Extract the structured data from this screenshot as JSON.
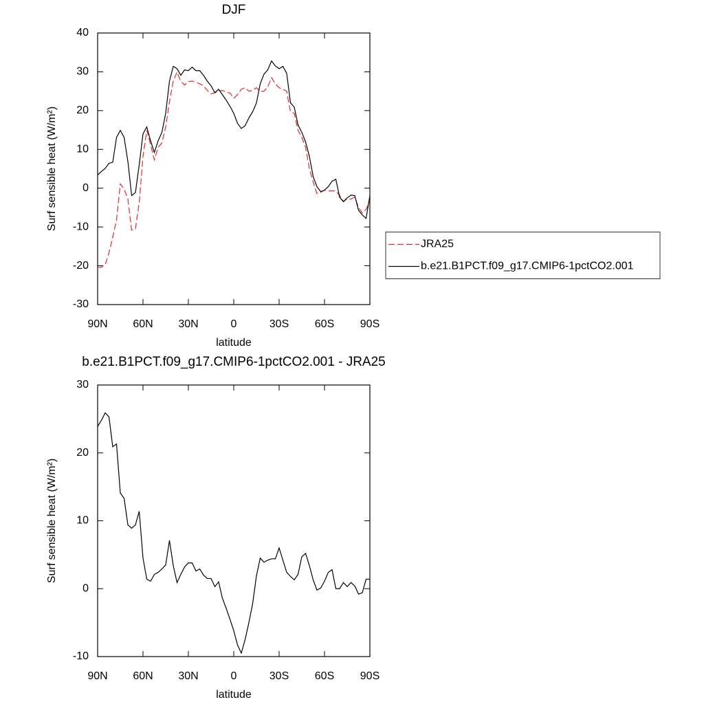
{
  "chart_data": [
    {
      "type": "line",
      "title": "DJF",
      "xlabel": "latitude",
      "ylabel": "Surf sensible heat (W/m²)",
      "x": [
        90,
        87.5,
        85,
        82.5,
        80,
        77.5,
        75,
        72.5,
        70,
        67.5,
        65,
        62.5,
        60,
        57.5,
        55,
        52.5,
        50,
        47.5,
        45,
        42.5,
        40,
        37.5,
        35,
        32.5,
        30,
        27.5,
        25,
        22.5,
        20,
        17.5,
        15,
        12.5,
        10,
        7.5,
        5,
        2.5,
        0,
        -2.5,
        -5,
        -7.5,
        -10,
        -12.5,
        -15,
        -17.5,
        -20,
        -22.5,
        -25,
        -27.5,
        -30,
        -32.5,
        -35,
        -37.5,
        -40,
        -42.5,
        -45,
        -47.5,
        -50,
        -52.5,
        -55,
        -57.5,
        -60,
        -62.5,
        -65,
        -67.5,
        -70,
        -72.5,
        -75,
        -77.5,
        -80,
        -82.5,
        -85,
        -87.5,
        -90
      ],
      "xlim": [
        90,
        -90
      ],
      "xticks": [
        {
          "value": 90,
          "label": "90N"
        },
        {
          "value": 60,
          "label": "60N"
        },
        {
          "value": 30,
          "label": "30N"
        },
        0,
        {
          "value": -30,
          "label": "30S"
        },
        {
          "value": -60,
          "label": "60S"
        },
        {
          "value": -90,
          "label": "90S"
        }
      ],
      "ylim": [
        -30,
        40
      ],
      "yticks": [
        -30,
        -20,
        -10,
        0,
        10,
        20,
        30,
        40
      ],
      "legend": "right",
      "series": [
        {
          "name": "JRA25",
          "color": "#e8262a",
          "line_style": "dashed",
          "values": [
            -20.4,
            -20.4,
            -19.7,
            -16.7,
            -12.6,
            -8.2,
            1.1,
            -0.2,
            -2.8,
            -10.8,
            -10.5,
            -3.7,
            8.2,
            14.9,
            11.3,
            7.3,
            10.5,
            11.7,
            15.8,
            22.3,
            27.6,
            29.9,
            27.6,
            26.6,
            27.5,
            27.6,
            27.3,
            26.9,
            26.4,
            25.2,
            24.3,
            24.6,
            25.0,
            25.2,
            24.8,
            24.5,
            23.2,
            24.1,
            25.5,
            25.9,
            25.0,
            25.2,
            25.9,
            25.0,
            25.0,
            26.1,
            28.5,
            26.9,
            25.9,
            25.5,
            25.0,
            19.7,
            19.3,
            14.9,
            13.1,
            10.5,
            5.1,
            1.6,
            -1.4,
            -1.1,
            -0.5,
            -0.7,
            -0.7,
            -0.7,
            -1.9,
            -3.4,
            -2.8,
            -2.8,
            -2.3,
            -5.0,
            -6.4,
            -5.5,
            -3.2
          ]
        },
        {
          "name": "b.e21.B1PCT.f09_g17.CMIP6-1pctCO2.001",
          "color": "#000000",
          "line_style": "solid",
          "values": [
            3.4,
            4.3,
            5.1,
            6.4,
            6.7,
            13.1,
            14.9,
            13.1,
            6.9,
            -1.9,
            -1.1,
            6.0,
            14.0,
            15.8,
            12.2,
            9.2,
            12.2,
            14.4,
            19.3,
            27.6,
            31.4,
            30.8,
            29.1,
            30.5,
            30.3,
            31.2,
            30.3,
            30.3,
            29.1,
            27.6,
            26.4,
            24.6,
            25.5,
            24.1,
            22.7,
            21.1,
            19.3,
            16.7,
            15.4,
            16.1,
            18.1,
            19.7,
            22.0,
            26.9,
            29.4,
            30.5,
            32.8,
            31.5,
            30.8,
            31.4,
            29.6,
            22.0,
            20.9,
            16.3,
            14.4,
            11.9,
            8.2,
            3.0,
            0.4,
            -0.9,
            -0.5,
            0.4,
            1.8,
            2.3,
            -2.3,
            -3.5,
            -2.5,
            -1.8,
            -1.9,
            -5.7,
            -6.9,
            -7.8,
            -1.9
          ]
        }
      ]
    },
    {
      "type": "line",
      "title": "b.e21.B1PCT.f09_g17.CMIP6-1pctCO2.001 - JRA25",
      "xlabel": "latitude",
      "ylabel": "Surf sensible heat (W/m²)",
      "x": [
        90,
        87.5,
        85,
        82.5,
        80,
        77.5,
        75,
        72.5,
        70,
        67.5,
        65,
        62.5,
        60,
        57.5,
        55,
        52.5,
        50,
        47.5,
        45,
        42.5,
        40,
        37.5,
        35,
        32.5,
        30,
        27.5,
        25,
        22.5,
        20,
        17.5,
        15,
        12.5,
        10,
        7.5,
        5,
        2.5,
        0,
        -2.5,
        -5,
        -7.5,
        -10,
        -12.5,
        -15,
        -17.5,
        -20,
        -22.5,
        -25,
        -27.5,
        -30,
        -32.5,
        -35,
        -37.5,
        -40,
        -42.5,
        -45,
        -47.5,
        -50,
        -52.5,
        -55,
        -57.5,
        -60,
        -62.5,
        -65,
        -67.5,
        -70,
        -72.5,
        -75,
        -77.5,
        -80,
        -82.5,
        -85,
        -87.5,
        -90
      ],
      "xlim": [
        90,
        -90
      ],
      "xticks": [
        {
          "value": 90,
          "label": "90N"
        },
        {
          "value": 60,
          "label": "60N"
        },
        {
          "value": 30,
          "label": "30N"
        },
        0,
        {
          "value": -30,
          "label": "30S"
        },
        {
          "value": -60,
          "label": "60S"
        },
        {
          "value": -90,
          "label": "90S"
        }
      ],
      "ylim": [
        -10,
        30
      ],
      "yticks": [
        -10,
        0,
        10,
        20,
        30
      ],
      "series": [
        {
          "color": "#000000",
          "line_style": "solid",
          "values": [
            23.9,
            24.8,
            25.9,
            25.3,
            20.9,
            21.3,
            14.1,
            13.3,
            9.4,
            8.9,
            9.4,
            11.4,
            4.5,
            1.4,
            1.1,
            2.1,
            2.4,
            2.9,
            3.5,
            7.1,
            3.4,
            0.9,
            2.1,
            3.2,
            3.8,
            3.8,
            2.6,
            2.9,
            2.0,
            1.5,
            1.5,
            0.3,
            1.0,
            -1.4,
            -2.9,
            -4.5,
            -6.2,
            -8.3,
            -9.5,
            -7.5,
            -5.0,
            -2.2,
            1.9,
            4.5,
            3.9,
            4.2,
            4.4,
            4.4,
            6.0,
            4.2,
            2.4,
            1.8,
            1.3,
            2.1,
            4.7,
            5.2,
            3.4,
            1.3,
            -0.2,
            0.1,
            1.1,
            2.4,
            2.8,
            0,
            0,
            0.9,
            0.3,
            0.9,
            0.4,
            -0.8,
            -0.6,
            1.4,
            1.4
          ]
        }
      ]
    }
  ]
}
